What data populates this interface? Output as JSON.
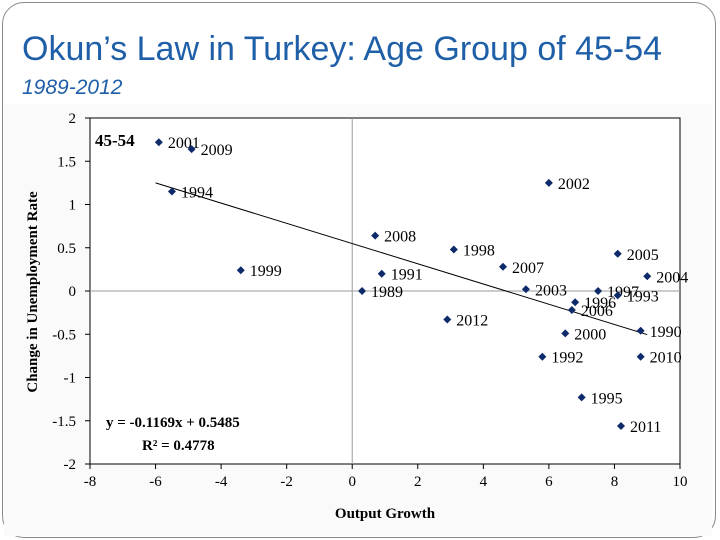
{
  "slide": {
    "title": "Okun’s Law in Turkey: Age Group of 45-54",
    "subtitle": "1989-2012"
  },
  "chart_data": {
    "type": "scatter",
    "title": "45-54",
    "xlabel": "Output Growth",
    "ylabel": "Change in Unemployment Rate",
    "xlim": [
      -8,
      10
    ],
    "ylim": [
      -2,
      2
    ],
    "xticks": [
      -8,
      -6,
      -4,
      -2,
      0,
      2,
      4,
      6,
      8,
      10
    ],
    "yticks": [
      2,
      1.5,
      1,
      0.5,
      0,
      -0.5,
      -1,
      -1.5,
      -2
    ],
    "marker_color": "#0d2a6b",
    "points": [
      {
        "label": "2001",
        "x": -5.9,
        "y": 1.72
      },
      {
        "label": "2009",
        "x": -4.9,
        "y": 1.64
      },
      {
        "label": "1994",
        "x": -5.5,
        "y": 1.15
      },
      {
        "label": "1999",
        "x": -3.4,
        "y": 0.24
      },
      {
        "label": "2002",
        "x": 6.0,
        "y": 1.25
      },
      {
        "label": "2008",
        "x": 0.7,
        "y": 0.64
      },
      {
        "label": "1998",
        "x": 3.1,
        "y": 0.48
      },
      {
        "label": "2005",
        "x": 8.1,
        "y": 0.43
      },
      {
        "label": "1991",
        "x": 0.9,
        "y": 0.2
      },
      {
        "label": "2007",
        "x": 4.6,
        "y": 0.28
      },
      {
        "label": "2004",
        "x": 9.0,
        "y": 0.17
      },
      {
        "label": "1989",
        "x": 0.3,
        "y": 0.0
      },
      {
        "label": "2003",
        "x": 5.3,
        "y": 0.02
      },
      {
        "label": "1997",
        "x": 7.5,
        "y": 0.0
      },
      {
        "label": "1993",
        "x": 8.1,
        "y": -0.05
      },
      {
        "label": "1996",
        "x": 6.8,
        "y": -0.13
      },
      {
        "label": "2006",
        "x": 6.7,
        "y": -0.22
      },
      {
        "label": "2012",
        "x": 2.9,
        "y": -0.33
      },
      {
        "label": "2000",
        "x": 6.5,
        "y": -0.49
      },
      {
        "label": "1990",
        "x": 8.8,
        "y": -0.46
      },
      {
        "label": "1992",
        "x": 5.8,
        "y": -0.76
      },
      {
        "label": "2010",
        "x": 8.8,
        "y": -0.76
      },
      {
        "label": "1995",
        "x": 7.0,
        "y": -1.23
      },
      {
        "label": "2011",
        "x": 8.2,
        "y": -1.56
      }
    ],
    "trendline": {
      "slope": -0.1169,
      "intercept": 0.5485,
      "x_range": [
        -6,
        9
      ],
      "equation_label": "y = -0.1169x + 0.5485",
      "r2_label": "R² = 0.4778"
    }
  }
}
